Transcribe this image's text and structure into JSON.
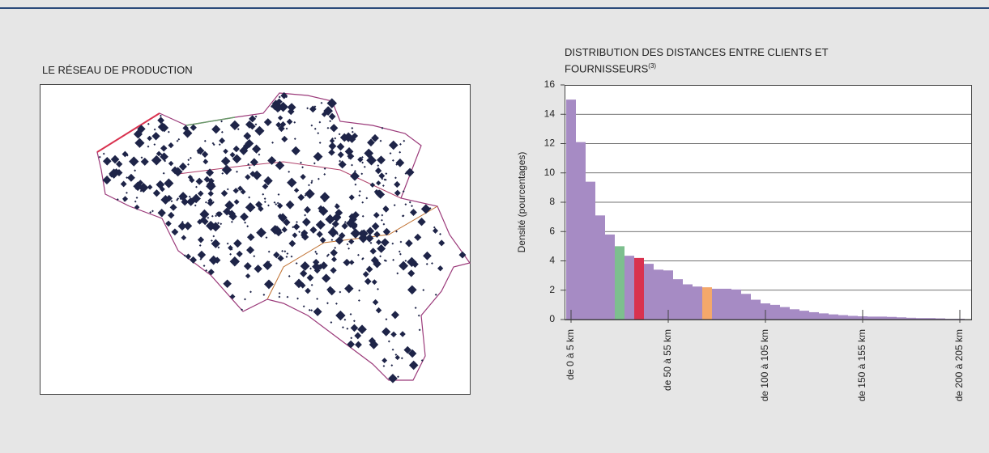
{
  "map_panel": {
    "title": "LE RÉSEAU DE PRODUCTION"
  },
  "chart_data": {
    "type": "bar",
    "title": "DISTRIBUTION DES DISTANCES ENTRE CLIENTS ET FOURNISSEURS",
    "title_note": "(3)",
    "y_label": "Densité (pourcentages)",
    "categories": [
      "de 0 à 5 km",
      null,
      null,
      null,
      null,
      null,
      null,
      null,
      null,
      null,
      "de 50 à 55 km",
      null,
      null,
      null,
      null,
      null,
      null,
      null,
      null,
      null,
      "de 100 à 105 km",
      null,
      null,
      null,
      null,
      null,
      null,
      null,
      null,
      null,
      "de 150 à 155 km",
      null,
      null,
      null,
      null,
      null,
      null,
      null,
      null,
      null,
      "de 200 à 205 km"
    ],
    "values": [
      15,
      12.1,
      9.4,
      7.1,
      5.8,
      5.0,
      4.35,
      4.2,
      3.8,
      3.4,
      3.35,
      2.75,
      2.4,
      2.25,
      2.2,
      2.1,
      2.1,
      2.05,
      1.75,
      1.35,
      1.1,
      1.0,
      0.85,
      0.7,
      0.6,
      0.5,
      0.42,
      0.35,
      0.3,
      0.25,
      0.22,
      0.2,
      0.2,
      0.18,
      0.15,
      0.12,
      0.1,
      0.1,
      0.08,
      0.05,
      0.05
    ],
    "color": "#a68bc4",
    "highlight_colors": {
      "5": "#7dbf8e",
      "7": "#d9324f",
      "14": "#f4a86b"
    },
    "ylim": [
      0,
      16
    ],
    "yticks": [
      0,
      2,
      4,
      6,
      8,
      10,
      12,
      14,
      16
    ],
    "grid": true
  }
}
